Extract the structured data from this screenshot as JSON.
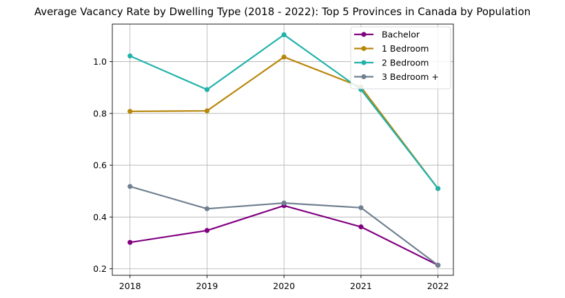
{
  "chart_data": {
    "type": "line",
    "title": "Average Vacancy Rate by Dwelling Type (2018 - 2022): Top 5 Provinces in Canada by Population",
    "xlabel": "",
    "ylabel": "",
    "x": [
      "2018",
      "2019",
      "2020",
      "2021",
      "2022"
    ],
    "xlim": [
      2017.77,
      2022.2
    ],
    "ylim": [
      0.175,
      1.145
    ],
    "yticks": [
      "0.2",
      "0.4",
      "0.6",
      "0.8",
      "1.0"
    ],
    "grid": true,
    "legend_position": "top-right",
    "series": [
      {
        "name": "Bachelor",
        "color": "#800080",
        "values": [
          0.302,
          0.348,
          0.444,
          0.362,
          0.214
        ]
      },
      {
        "name": "1 Bedroom",
        "color": "#b8860b",
        "values": [
          0.808,
          0.81,
          1.018,
          0.902,
          0.51
        ]
      },
      {
        "name": "2 Bedroom",
        "color": "#20b2aa",
        "values": [
          1.022,
          0.892,
          1.104,
          0.892,
          0.51
        ]
      },
      {
        "name": "3 Bedroom +",
        "color": "#708090",
        "values": [
          0.518,
          0.432,
          0.454,
          0.436,
          0.214
        ]
      }
    ]
  }
}
